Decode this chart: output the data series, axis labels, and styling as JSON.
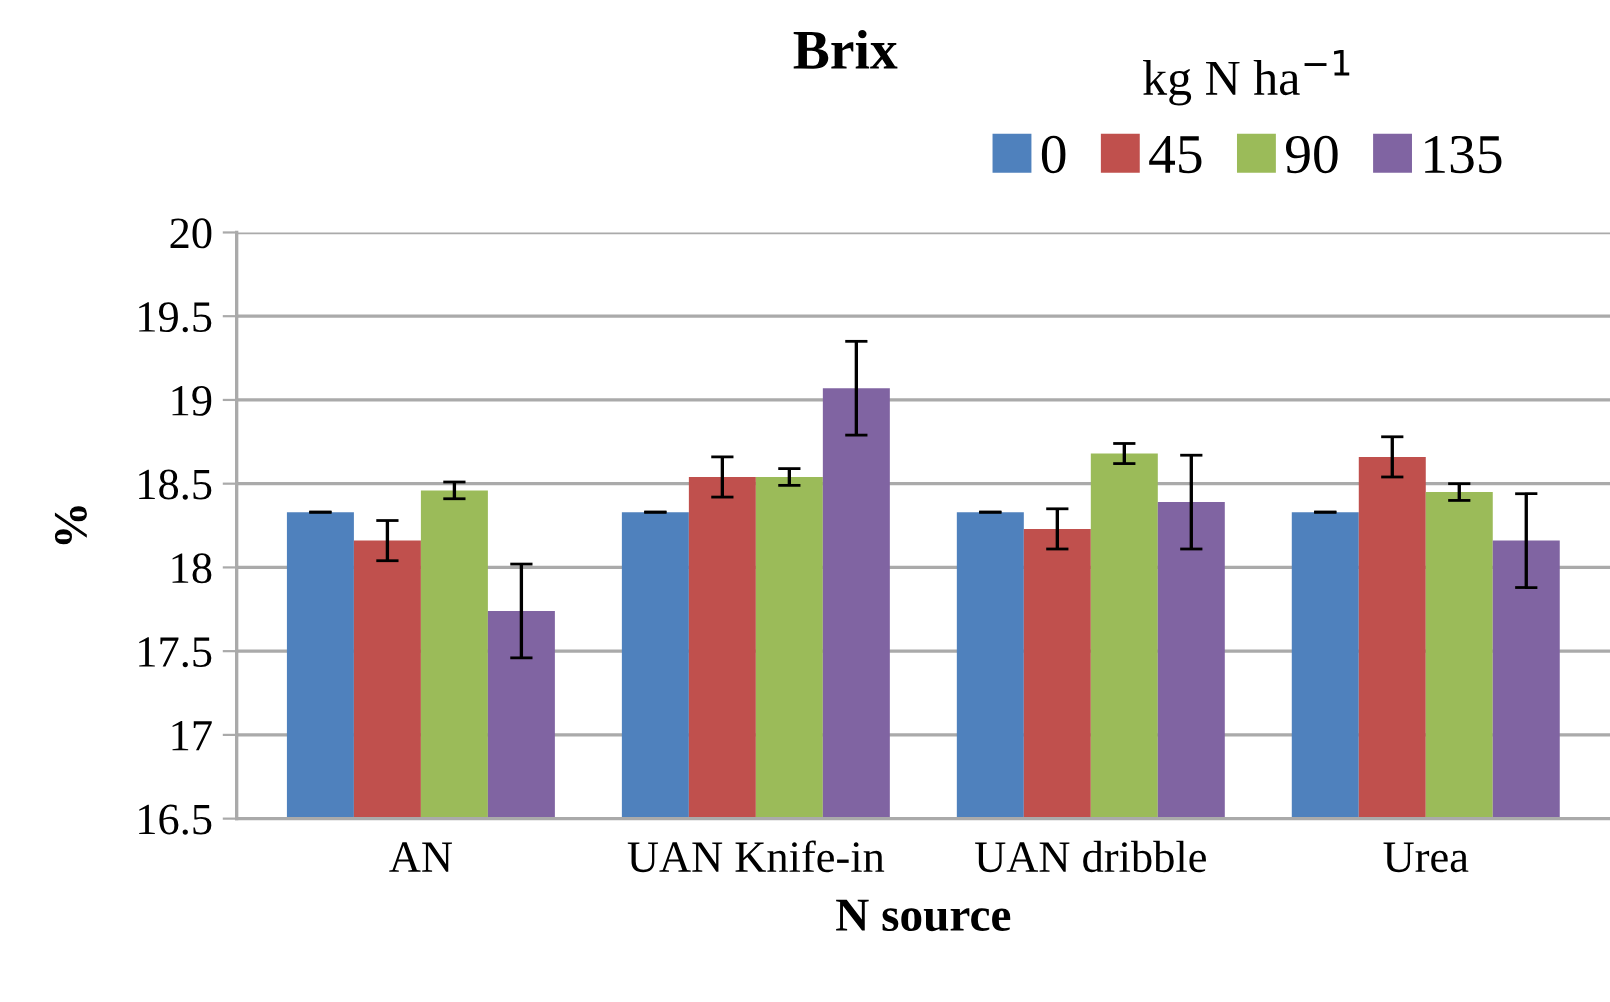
{
  "chart_data": {
    "type": "bar",
    "title": "Brix",
    "xlabel": "N source",
    "ylabel": "%",
    "legend_title": "kg N ha$^{−1}$",
    "categories": [
      "AN",
      "UAN Knife-in",
      "UAN dribble",
      "Urea"
    ],
    "series": [
      {
        "name": "0",
        "color": "#4f81bd",
        "values": [
          18.33,
          18.33,
          18.33,
          18.33
        ],
        "errors": [
          0,
          0,
          0,
          0
        ]
      },
      {
        "name": "45",
        "color": "#c0504d",
        "values": [
          18.16,
          18.54,
          18.23,
          18.66
        ],
        "errors": [
          0.12,
          0.12,
          0.12,
          0.12
        ]
      },
      {
        "name": "90",
        "color": "#9bbb59",
        "values": [
          18.46,
          18.54,
          18.68,
          18.45
        ],
        "errors": [
          0.05,
          0.05,
          0.06,
          0.05
        ]
      },
      {
        "name": "135",
        "color": "#8064a2",
        "values": [
          17.74,
          19.07,
          18.39,
          18.16
        ],
        "errors": [
          0.28,
          0.28,
          0.28,
          0.28
        ]
      }
    ],
    "ylim": [
      16.5,
      20
    ],
    "yticks": [
      16.5,
      17,
      17.5,
      18,
      18.5,
      19,
      19.5,
      20
    ],
    "grid": "y",
    "legend": "top right"
  }
}
